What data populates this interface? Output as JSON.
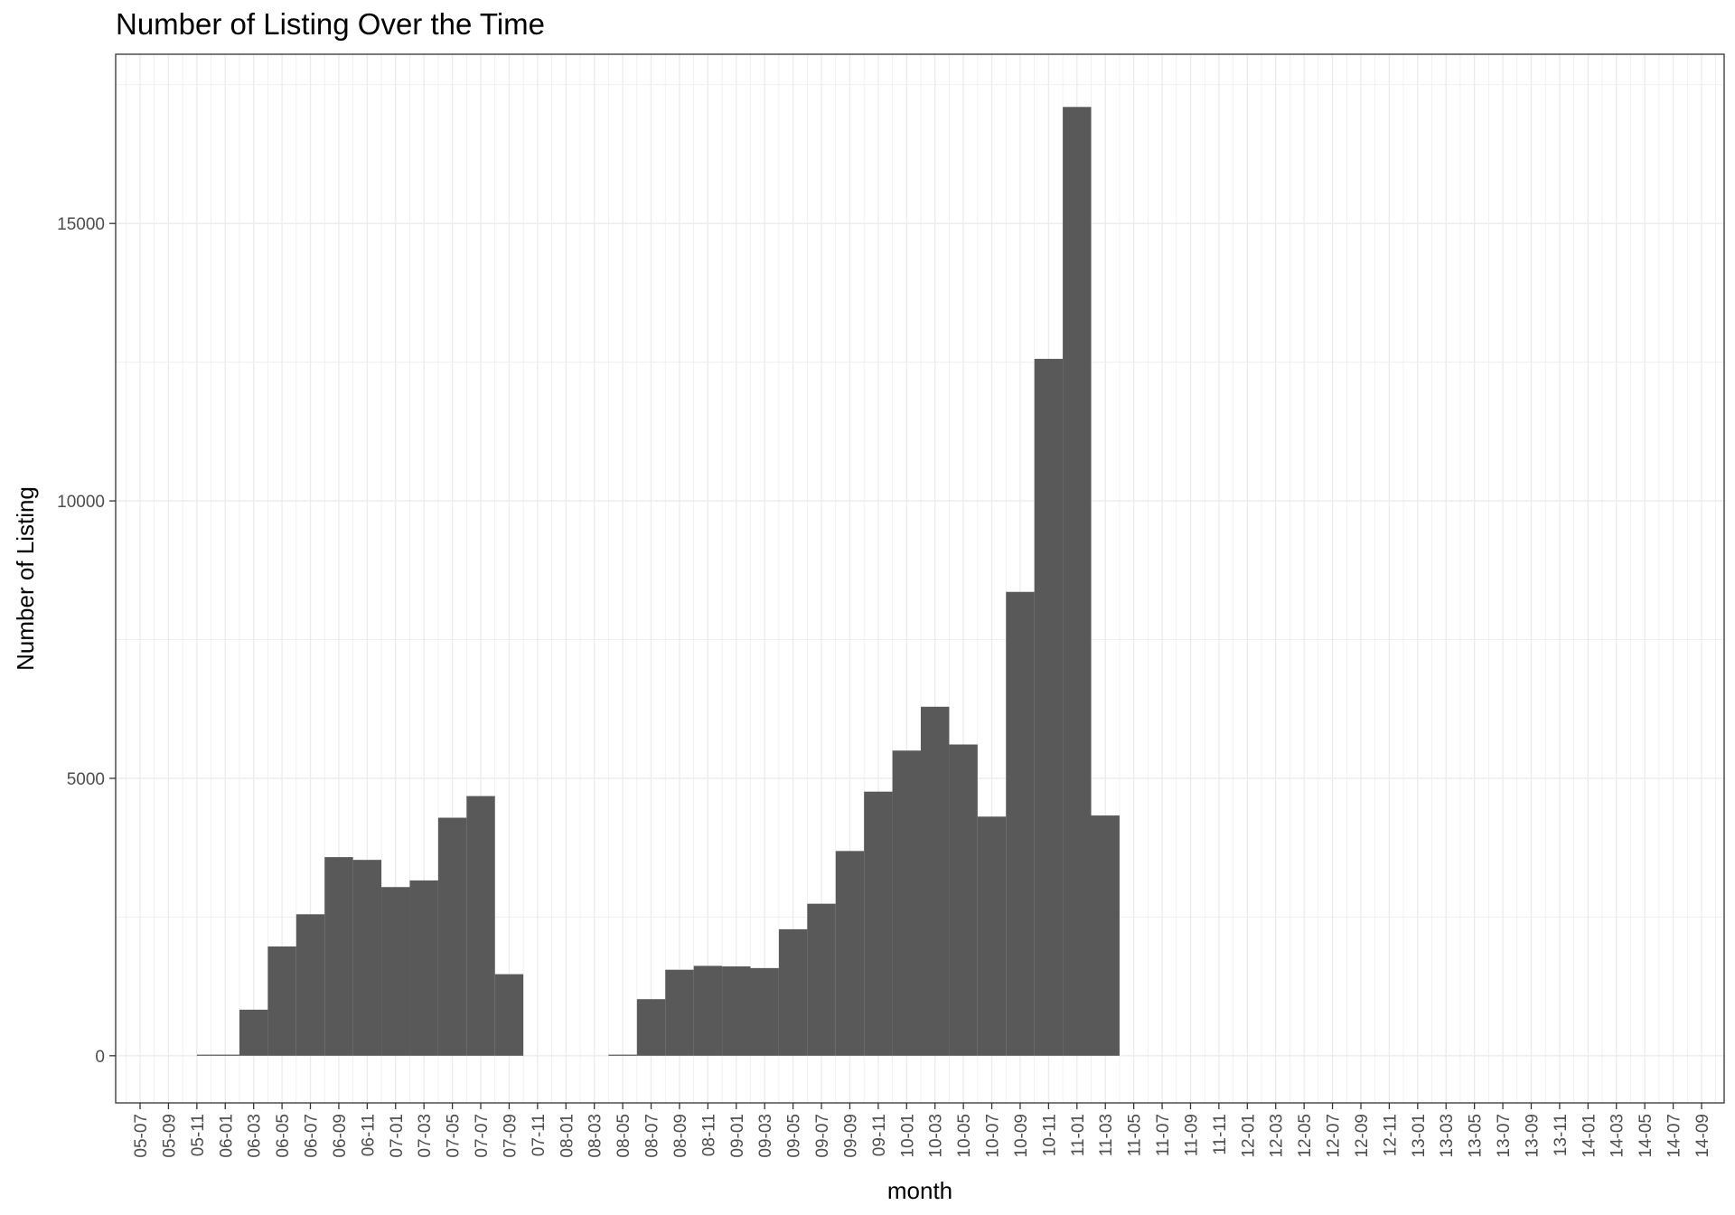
{
  "chart_data": {
    "type": "bar",
    "title": "Number of Listing Over the Time",
    "xlabel": "month",
    "ylabel": "Number of Listing",
    "x_tick_labels": [
      "05-07",
      "05-09",
      "05-11",
      "06-01",
      "06-03",
      "06-05",
      "06-07",
      "06-09",
      "06-11",
      "07-01",
      "07-03",
      "07-05",
      "07-07",
      "07-09",
      "07-11",
      "08-01",
      "08-03",
      "08-05",
      "08-07",
      "08-09",
      "08-11",
      "09-01",
      "09-03",
      "09-05",
      "09-07",
      "09-09",
      "09-11",
      "10-01",
      "10-03",
      "10-05",
      "10-07",
      "10-09",
      "10-11",
      "11-01",
      "11-03",
      "11-05",
      "11-07",
      "11-09",
      "11-11",
      "12-01",
      "12-03",
      "12-05",
      "12-07",
      "12-09",
      "12-11",
      "13-01",
      "13-03",
      "13-05",
      "13-07",
      "13-09",
      "13-11",
      "14-01",
      "14-03",
      "14-05",
      "14-07",
      "14-09"
    ],
    "y_ticks": [
      0,
      5000,
      10000,
      15000
    ],
    "y_tick_labels": [
      "0",
      "5000",
      "10000",
      "15000"
    ],
    "ylim": [
      -850,
      18050
    ],
    "bars": [
      {
        "start": "05-11",
        "end": "06-02",
        "value": 20
      },
      {
        "start": "06-02",
        "end": "06-04",
        "value": 830
      },
      {
        "start": "06-04",
        "end": "06-06",
        "value": 1970
      },
      {
        "start": "06-06",
        "end": "06-08",
        "value": 2550
      },
      {
        "start": "06-08",
        "end": "06-10",
        "value": 3580
      },
      {
        "start": "06-10",
        "end": "06-12",
        "value": 3530
      },
      {
        "start": "06-12",
        "end": "07-02",
        "value": 3040
      },
      {
        "start": "07-02",
        "end": "07-04",
        "value": 3160
      },
      {
        "start": "07-04",
        "end": "07-06",
        "value": 4290
      },
      {
        "start": "07-06",
        "end": "07-08",
        "value": 4680
      },
      {
        "start": "07-08",
        "end": "07-10",
        "value": 1470
      },
      {
        "start": "08-04",
        "end": "08-06",
        "value": 20
      },
      {
        "start": "08-06",
        "end": "08-08",
        "value": 1020
      },
      {
        "start": "08-08",
        "end": "08-10",
        "value": 1550
      },
      {
        "start": "08-10",
        "end": "08-12",
        "value": 1620
      },
      {
        "start": "08-12",
        "end": "09-02",
        "value": 1610
      },
      {
        "start": "09-02",
        "end": "09-04",
        "value": 1580
      },
      {
        "start": "09-04",
        "end": "09-06",
        "value": 2280
      },
      {
        "start": "09-06",
        "end": "09-08",
        "value": 2740
      },
      {
        "start": "09-08",
        "end": "09-10",
        "value": 3690
      },
      {
        "start": "09-10",
        "end": "09-12",
        "value": 4760
      },
      {
        "start": "09-12",
        "end": "10-02",
        "value": 5500
      },
      {
        "start": "10-02",
        "end": "10-04",
        "value": 6290
      },
      {
        "start": "10-04",
        "end": "10-06",
        "value": 5610
      },
      {
        "start": "10-06",
        "end": "10-08",
        "value": 4310
      },
      {
        "start": "10-08",
        "end": "10-10",
        "value": 8360
      },
      {
        "start": "10-10",
        "end": "10-12",
        "value": 12560
      },
      {
        "start": "10-12",
        "end": "11-02",
        "value": 17100
      },
      {
        "start": "11-02",
        "end": "11-04",
        "value": 4330
      }
    ],
    "bar_color": "#595959",
    "grid": true,
    "legend": "none"
  }
}
